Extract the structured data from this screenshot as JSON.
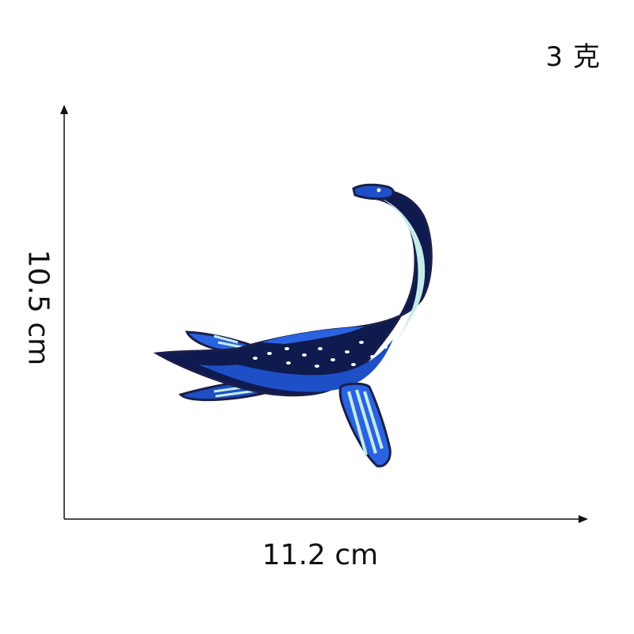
{
  "weight": "3 克",
  "width": "11.2 cm",
  "height": "10.5 cm",
  "product": {
    "colors": {
      "outline": "#1a1f4a",
      "navy": "#0f1a4f",
      "blue": "#1e4fc6",
      "bright_blue": "#2a63e0",
      "pale": "#c6ece8",
      "white": "#ffffff"
    }
  }
}
